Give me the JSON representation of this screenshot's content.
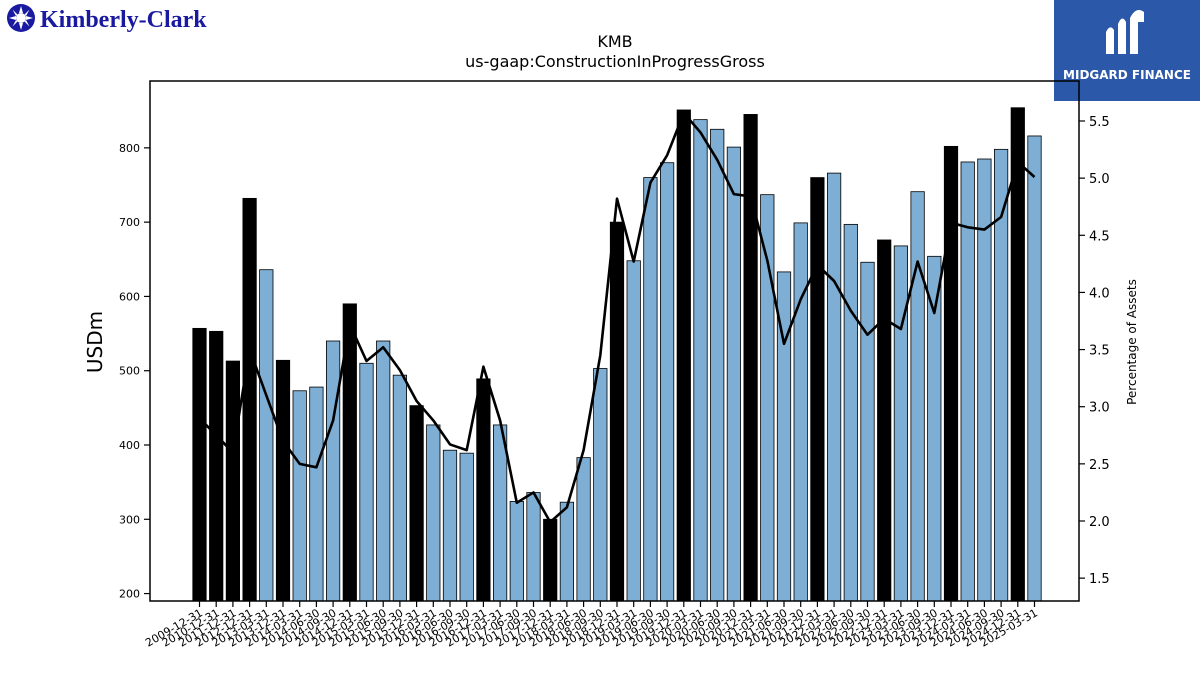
{
  "header": {
    "company_logo_text": "Kimberly-Clark",
    "partner_logo_text": "MIDGARD FINANCE",
    "ticker": "KMB",
    "concept": "us-gaap:ConstructionInProgressGross"
  },
  "colors": {
    "annual_bar": "#000000",
    "quarter_bar": "#7eaed3",
    "line": "#000000",
    "kimberly_blue": "#1a1aa0",
    "midgard_blue": "#2b58a8"
  },
  "chart_data": {
    "type": "bar",
    "title": "KMB",
    "subtitle": "us-gaap:ConstructionInProgressGross",
    "ylabel": "USDm",
    "y2label": "Percentage of Assets",
    "ylim": [
      190,
      890
    ],
    "y2lim": [
      1.3,
      5.85
    ],
    "yticks": [
      200,
      300,
      400,
      500,
      600,
      700,
      800
    ],
    "y2ticks": [
      1.5,
      2.0,
      2.5,
      3.0,
      3.5,
      4.0,
      4.5,
      5.0,
      5.5
    ],
    "categories": [
      "2009-12-31",
      "2010-12-31",
      "2011-12-31",
      "2012-12-31",
      "2013-03-31",
      "2013-12-31",
      "2014-03-31",
      "2014-06-30",
      "2014-09-30",
      "2014-12-31",
      "2015-03-31",
      "2015-06-30",
      "2015-09-30",
      "2015-12-31",
      "2016-03-31",
      "2016-06-30",
      "2016-09-30",
      "2016-12-31",
      "2017-03-31",
      "2017-06-30",
      "2017-09-30",
      "2017-12-31",
      "2018-03-31",
      "2018-06-30",
      "2018-09-30",
      "2018-12-31",
      "2019-03-31",
      "2019-06-30",
      "2019-09-30",
      "2019-12-31",
      "2020-03-31",
      "2020-06-30",
      "2020-09-30",
      "2020-12-31",
      "2021-03-31",
      "2021-06-30",
      "2021-09-30",
      "2021-12-31",
      "2022-03-31",
      "2022-06-30",
      "2022-09-30",
      "2022-12-31",
      "2023-03-31",
      "2023-06-30",
      "2023-09-30",
      "2023-12-31",
      "2024-03-31",
      "2024-06-30",
      "2024-09-30",
      "2024-12-31",
      "2025-03-31"
    ],
    "series": [
      {
        "kind": "bar",
        "values": [
          557,
          553,
          513,
          732,
          636,
          514,
          473,
          478,
          540,
          590,
          510,
          540,
          494,
          453,
          427,
          393,
          389,
          489,
          427,
          324,
          336,
          300,
          323,
          383,
          503,
          700,
          648,
          760,
          780,
          851,
          838,
          825,
          801,
          845,
          737,
          633,
          699,
          760,
          766,
          697,
          646,
          676,
          668,
          741,
          654,
          802,
          781,
          785,
          798,
          854,
          816
        ],
        "annual": [
          true,
          true,
          true,
          true,
          false,
          true,
          false,
          false,
          false,
          true,
          false,
          false,
          false,
          true,
          false,
          false,
          false,
          true,
          false,
          false,
          false,
          true,
          false,
          false,
          false,
          true,
          false,
          false,
          false,
          true,
          false,
          false,
          false,
          true,
          false,
          false,
          false,
          true,
          false,
          false,
          false,
          true,
          false,
          false,
          false,
          true,
          false,
          false,
          false,
          true,
          false
        ]
      },
      {
        "kind": "line",
        "axis": "right",
        "values": [
          2.9,
          2.75,
          2.6,
          3.5,
          3.1,
          2.7,
          2.5,
          2.47,
          2.88,
          3.72,
          3.4,
          3.52,
          3.32,
          3.05,
          2.88,
          2.67,
          2.62,
          3.35,
          2.88,
          2.16,
          2.25,
          1.99,
          2.12,
          2.62,
          3.45,
          4.82,
          4.27,
          4.96,
          5.2,
          5.57,
          5.4,
          5.16,
          4.86,
          4.84,
          4.28,
          3.55,
          3.94,
          4.24,
          4.1,
          3.84,
          3.63,
          3.77,
          3.68,
          4.27,
          3.82,
          4.61,
          4.57,
          4.55,
          4.66,
          5.14,
          5.01
        ]
      }
    ],
    "grid": false,
    "legend": "none"
  }
}
